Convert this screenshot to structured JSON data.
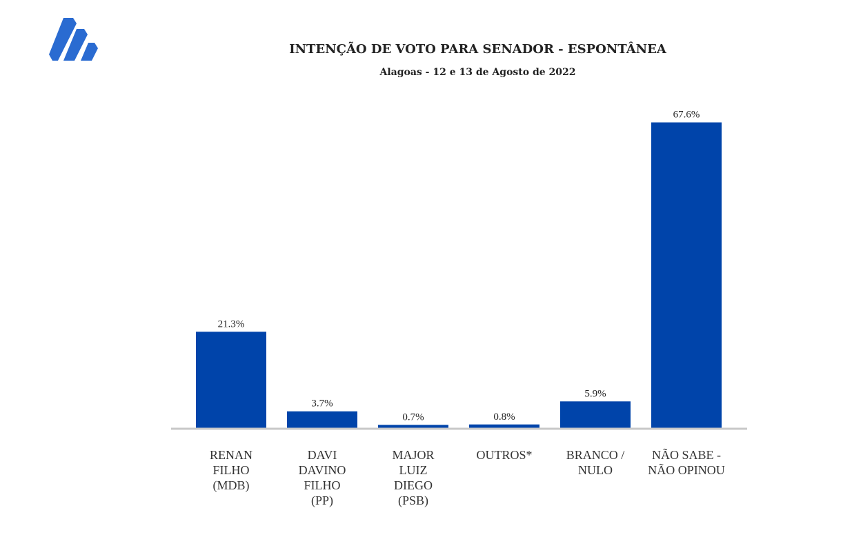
{
  "logo": {
    "name": "logo-icon",
    "color": "#2a6bd1"
  },
  "chart_data": {
    "type": "bar",
    "title": "INTENÇÃO DE VOTO PARA SENADOR - ESPONTÂNEA",
    "subtitle": "Alagoas - 12 e 13 de Agosto de 2022",
    "categories": [
      "RENAN\nFILHO\n(MDB)",
      "DAVI\nDAVINO\nFILHO\n(PP)",
      "MAJOR\nLUIZ\nDIEGO\n(PSB)",
      "OUTROS*",
      "BRANCO /\nNULO",
      "NÃO SABE  -\nNÃO OPINOU"
    ],
    "values": [
      21.3,
      3.7,
      0.7,
      0.8,
      5.9,
      67.6
    ],
    "labels": [
      "21.3%",
      "3.7%",
      "0.7%",
      "0.8%",
      "5.9%",
      "67.6%"
    ],
    "xlabel": "",
    "ylabel": "",
    "ylim": [
      0,
      70
    ],
    "grid": false,
    "bar_color": "#0044aa"
  }
}
